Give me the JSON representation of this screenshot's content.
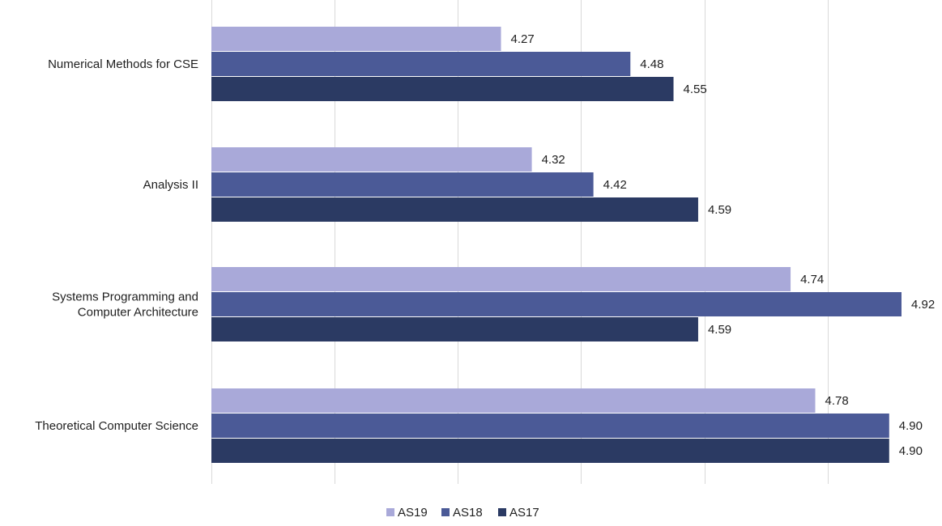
{
  "chart_data": {
    "type": "bar",
    "orientation": "horizontal",
    "title": "",
    "xlabel": "",
    "ylabel": "",
    "categories": [
      [
        "Numerical Methods for CSE"
      ],
      [
        "Analysis II"
      ],
      [
        "Systems Programming and",
        "Computer Architecture"
      ],
      [
        "Theoretical Computer Science"
      ]
    ],
    "series": [
      {
        "name": "AS19",
        "color": "#a9a9d9",
        "values": [
          4.27,
          4.32,
          4.74,
          4.78
        ],
        "labels": [
          "4.27",
          "4.32",
          "4.74",
          "4.78"
        ]
      },
      {
        "name": "AS18",
        "color": "#4b5a97",
        "values": [
          4.48,
          4.42,
          4.92,
          4.9
        ],
        "labels": [
          "4.48",
          "4.42",
          "4.92",
          "4.90"
        ]
      },
      {
        "name": "AS17",
        "color": "#2b3a63",
        "values": [
          4.55,
          4.59,
          4.59,
          4.9
        ],
        "labels": [
          "4.55",
          "4.59",
          "4.59",
          "4.90"
        ]
      }
    ],
    "xlim": [
      3.8,
      4.92
    ],
    "x_gridlines": [
      3.8,
      4.0,
      4.2,
      4.4,
      4.6,
      4.8
    ],
    "grid": true,
    "tick_labels_visible": false,
    "legend_position": "bottom"
  }
}
